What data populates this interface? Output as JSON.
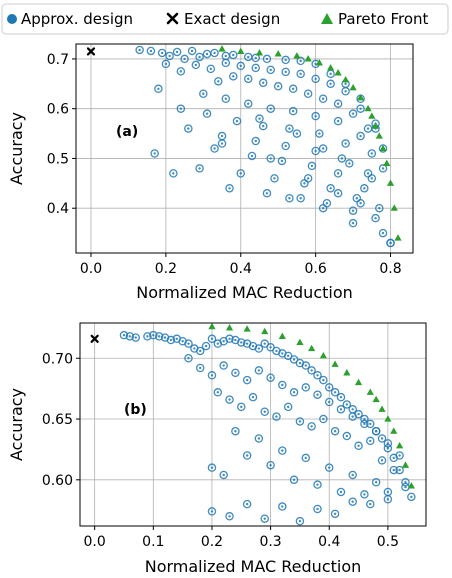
{
  "legend": [
    {
      "label": "Approx. design",
      "marker": "circle",
      "color": "#1f77b4"
    },
    {
      "label": "Exact design",
      "marker": "x",
      "color": "#000000"
    },
    {
      "label": "Pareto Front",
      "marker": "triangle",
      "color": "#2ca02c"
    }
  ],
  "chart_data": [
    {
      "type": "scatter",
      "panel_label": "(a)",
      "xlabel": "Normalized MAC Reduction",
      "ylabel": "Accuracy",
      "xlim": [
        -0.04,
        0.86
      ],
      "ylim": [
        0.31,
        0.73
      ],
      "xticks": [
        0.0,
        0.2,
        0.4,
        0.6,
        0.8
      ],
      "xtick_labels": [
        "0.0",
        "0.2",
        "0.4",
        "0.6",
        "0.8"
      ],
      "yticks": [
        0.4,
        0.5,
        0.6,
        0.7
      ],
      "ytick_labels": [
        "0.4",
        "0.5",
        "0.6",
        "0.7"
      ],
      "grid": true,
      "series": [
        {
          "name": "Exact design",
          "marker": "x",
          "color": "#000000",
          "x": [
            0.0
          ],
          "y": [
            0.715
          ]
        },
        {
          "name": "Pareto Front",
          "marker": "triangle",
          "color": "#2ca02c",
          "x": [
            0.35,
            0.4,
            0.45,
            0.5,
            0.55,
            0.58,
            0.61,
            0.64,
            0.66,
            0.68,
            0.7,
            0.72,
            0.74,
            0.75,
            0.76,
            0.77,
            0.78,
            0.79,
            0.8,
            0.81,
            0.82
          ],
          "y": [
            0.72,
            0.715,
            0.712,
            0.71,
            0.706,
            0.7,
            0.692,
            0.682,
            0.672,
            0.658,
            0.642,
            0.622,
            0.6,
            0.585,
            0.565,
            0.545,
            0.52,
            0.49,
            0.45,
            0.4,
            0.34
          ]
        },
        {
          "name": "Approx. design",
          "marker": "circle",
          "color": "#1f77b4",
          "x": [
            0.13,
            0.16,
            0.19,
            0.21,
            0.23,
            0.25,
            0.27,
            0.29,
            0.31,
            0.33,
            0.36,
            0.38,
            0.42,
            0.44,
            0.47,
            0.52,
            0.56,
            0.6,
            0.64,
            0.68,
            0.72,
            0.76,
            0.2,
            0.24,
            0.28,
            0.32,
            0.36,
            0.4,
            0.44,
            0.48,
            0.52,
            0.56,
            0.6,
            0.64,
            0.68,
            0.72,
            0.76,
            0.34,
            0.38,
            0.42,
            0.46,
            0.5,
            0.54,
            0.58,
            0.62,
            0.66,
            0.7,
            0.74,
            0.78,
            0.3,
            0.36,
            0.42,
            0.48,
            0.54,
            0.6,
            0.66,
            0.72,
            0.78,
            0.24,
            0.31,
            0.39,
            0.46,
            0.53,
            0.61,
            0.68,
            0.75,
            0.17,
            0.26,
            0.35,
            0.44,
            0.52,
            0.6,
            0.67,
            0.74,
            0.22,
            0.33,
            0.43,
            0.51,
            0.59,
            0.66,
            0.73,
            0.29,
            0.4,
            0.49,
            0.57,
            0.64,
            0.71,
            0.77,
            0.37,
            0.47,
            0.56,
            0.63,
            0.7,
            0.76,
            0.35,
            0.48,
            0.58,
            0.66,
            0.72,
            0.8,
            0.18,
            0.45,
            0.55,
            0.62,
            0.69,
            0.75,
            0.53,
            0.62,
            0.7,
            0.78,
            0.8
          ],
          "y": [
            0.718,
            0.716,
            0.712,
            0.706,
            0.714,
            0.7,
            0.716,
            0.704,
            0.71,
            0.712,
            0.706,
            0.708,
            0.704,
            0.702,
            0.7,
            0.698,
            0.696,
            0.69,
            0.67,
            0.65,
            0.62,
            0.57,
            0.69,
            0.675,
            0.688,
            0.68,
            0.692,
            0.686,
            0.682,
            0.678,
            0.674,
            0.67,
            0.66,
            0.65,
            0.635,
            0.6,
            0.56,
            0.655,
            0.665,
            0.66,
            0.652,
            0.645,
            0.64,
            0.63,
            0.62,
            0.61,
            0.59,
            0.56,
            0.52,
            0.63,
            0.62,
            0.61,
            0.6,
            0.595,
            0.585,
            0.575,
            0.545,
            0.48,
            0.6,
            0.59,
            0.575,
            0.565,
            0.56,
            0.55,
            0.53,
            0.51,
            0.51,
            0.56,
            0.545,
            0.535,
            0.525,
            0.515,
            0.5,
            0.47,
            0.47,
            0.52,
            0.505,
            0.495,
            0.485,
            0.47,
            0.44,
            0.48,
            0.47,
            0.46,
            0.45,
            0.44,
            0.42,
            0.4,
            0.44,
            0.43,
            0.42,
            0.41,
            0.395,
            0.38,
            0.53,
            0.5,
            0.46,
            0.43,
            0.41,
            0.33,
            0.64,
            0.58,
            0.55,
            0.52,
            0.49,
            0.46,
            0.42,
            0.4,
            0.37,
            0.35,
            0.33
          ]
        }
      ]
    },
    {
      "type": "scatter",
      "panel_label": "(b)",
      "xlabel": "Normalized MAC Reduction",
      "ylabel": "Accuracy",
      "xlim": [
        -0.025,
        0.565
      ],
      "ylim": [
        0.562,
        0.729
      ],
      "xticks": [
        0.0,
        0.1,
        0.2,
        0.3,
        0.4,
        0.5
      ],
      "xtick_labels": [
        "0.0",
        "0.1",
        "0.2",
        "0.3",
        "0.4",
        "0.5"
      ],
      "yticks": [
        0.6,
        0.65,
        0.7
      ],
      "ytick_labels": [
        "0.60",
        "0.65",
        "0.70"
      ],
      "grid": true,
      "series": [
        {
          "name": "Exact design",
          "marker": "x",
          "color": "#000000",
          "x": [
            0.0
          ],
          "y": [
            0.716
          ]
        },
        {
          "name": "Pareto Front",
          "marker": "triangle",
          "color": "#2ca02c",
          "x": [
            0.2,
            0.23,
            0.26,
            0.29,
            0.32,
            0.35,
            0.37,
            0.39,
            0.41,
            0.43,
            0.45,
            0.47,
            0.48,
            0.49,
            0.5,
            0.51,
            0.52,
            0.53,
            0.54
          ],
          "y": [
            0.726,
            0.725,
            0.724,
            0.722,
            0.718,
            0.713,
            0.708,
            0.702,
            0.695,
            0.688,
            0.68,
            0.672,
            0.666,
            0.658,
            0.65,
            0.64,
            0.628,
            0.612,
            0.595
          ]
        },
        {
          "name": "Approx. design",
          "marker": "circle",
          "color": "#1f77b4",
          "x": [
            0.05,
            0.06,
            0.07,
            0.09,
            0.1,
            0.11,
            0.12,
            0.13,
            0.14,
            0.15,
            0.16,
            0.17,
            0.18,
            0.19,
            0.2,
            0.21,
            0.22,
            0.23,
            0.24,
            0.25,
            0.26,
            0.27,
            0.28,
            0.29,
            0.3,
            0.31,
            0.32,
            0.33,
            0.34,
            0.35,
            0.36,
            0.37,
            0.38,
            0.39,
            0.4,
            0.41,
            0.42,
            0.43,
            0.44,
            0.45,
            0.46,
            0.47,
            0.48,
            0.49,
            0.5,
            0.51,
            0.52,
            0.53,
            0.54,
            0.16,
            0.18,
            0.2,
            0.22,
            0.24,
            0.26,
            0.28,
            0.3,
            0.32,
            0.34,
            0.36,
            0.38,
            0.4,
            0.42,
            0.44,
            0.46,
            0.48,
            0.5,
            0.52,
            0.21,
            0.23,
            0.25,
            0.27,
            0.29,
            0.31,
            0.33,
            0.35,
            0.37,
            0.39,
            0.41,
            0.43,
            0.45,
            0.47,
            0.49,
            0.51,
            0.2,
            0.22,
            0.24,
            0.26,
            0.28,
            0.3,
            0.32,
            0.34,
            0.36,
            0.38,
            0.4,
            0.42,
            0.44,
            0.46,
            0.48,
            0.5,
            0.2,
            0.23,
            0.26,
            0.29,
            0.32,
            0.35,
            0.38,
            0.41,
            0.44,
            0.47,
            0.5,
            0.53
          ],
          "y": [
            0.719,
            0.718,
            0.717,
            0.718,
            0.719,
            0.718,
            0.717,
            0.715,
            0.716,
            0.714,
            0.712,
            0.708,
            0.706,
            0.71,
            0.716,
            0.712,
            0.714,
            0.716,
            0.715,
            0.713,
            0.712,
            0.71,
            0.708,
            0.712,
            0.709,
            0.706,
            0.704,
            0.702,
            0.699,
            0.696,
            0.694,
            0.69,
            0.686,
            0.682,
            0.676,
            0.672,
            0.668,
            0.662,
            0.658,
            0.654,
            0.65,
            0.646,
            0.64,
            0.634,
            0.626,
            0.618,
            0.608,
            0.598,
            0.586,
            0.7,
            0.692,
            0.686,
            0.694,
            0.688,
            0.682,
            0.69,
            0.684,
            0.678,
            0.672,
            0.676,
            0.67,
            0.664,
            0.658,
            0.652,
            0.646,
            0.64,
            0.63,
            0.62,
            0.672,
            0.666,
            0.66,
            0.668,
            0.656,
            0.652,
            0.66,
            0.648,
            0.644,
            0.65,
            0.64,
            0.636,
            0.628,
            0.632,
            0.616,
            0.608,
            0.61,
            0.604,
            0.64,
            0.62,
            0.634,
            0.612,
            0.624,
            0.6,
            0.618,
            0.596,
            0.61,
            0.59,
            0.604,
            0.588,
            0.598,
            0.584,
            0.574,
            0.57,
            0.58,
            0.568,
            0.578,
            0.566,
            0.576,
            0.572,
            0.582,
            0.58,
            0.59,
            0.594
          ]
        }
      ]
    }
  ]
}
